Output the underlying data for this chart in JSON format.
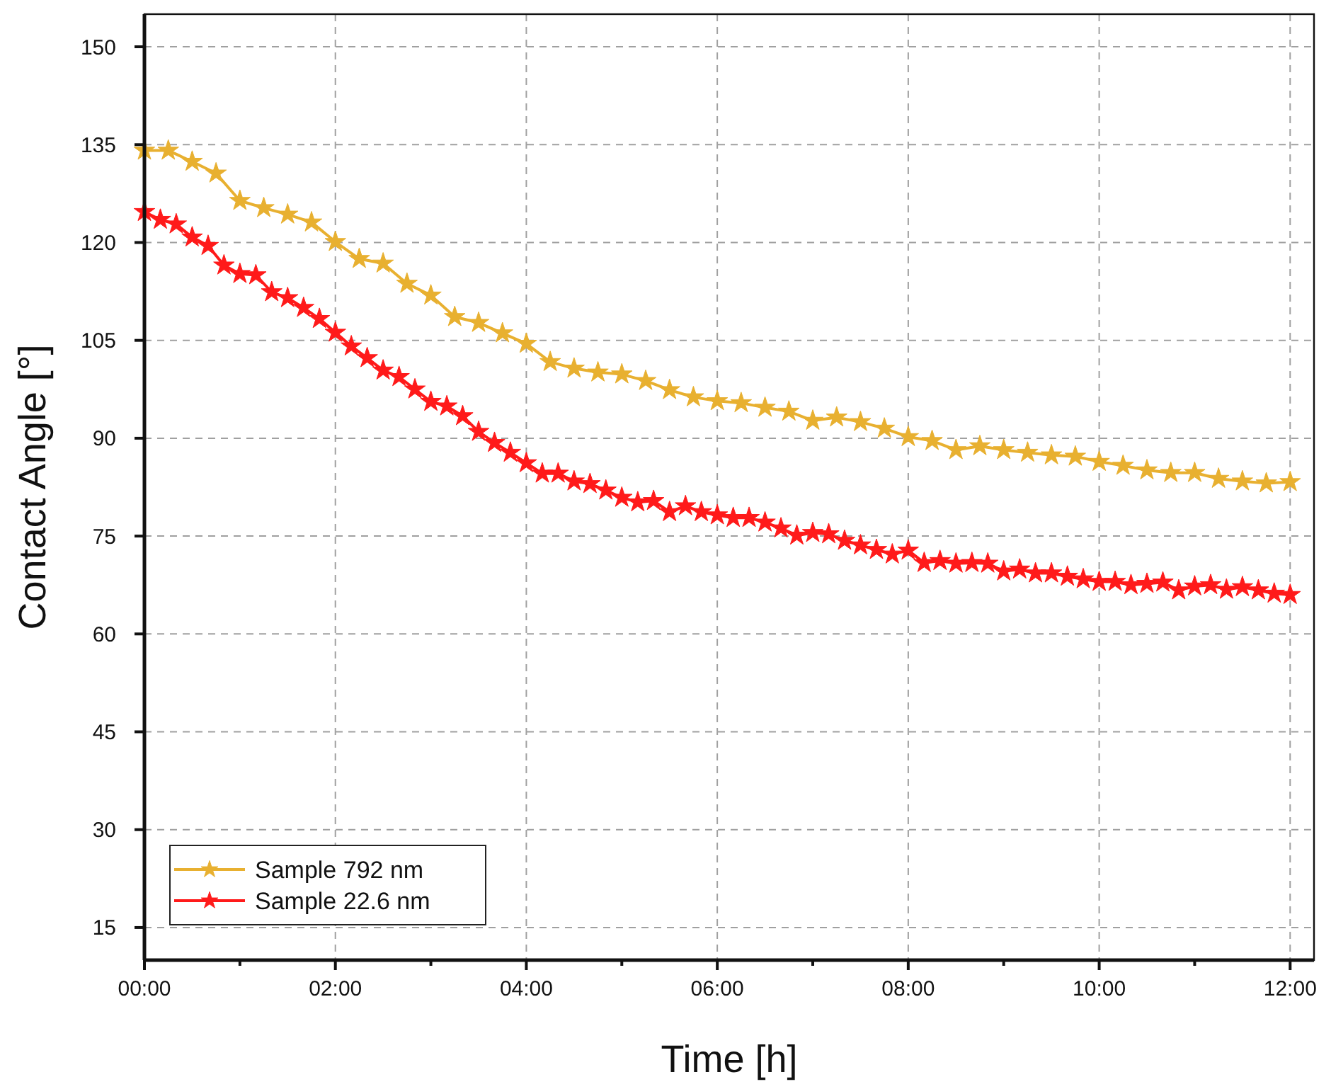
{
  "chart_data": {
    "type": "line",
    "xlabel": "Time [h]",
    "ylabel": "Contact Angle [°]",
    "xlim": [
      0,
      12.25
    ],
    "ylim": [
      10,
      155
    ],
    "xticks": [
      {
        "value": 0,
        "label": "00:00"
      },
      {
        "value": 1,
        "label": null
      },
      {
        "value": 2,
        "label": "02:00"
      },
      {
        "value": 3,
        "label": null
      },
      {
        "value": 4,
        "label": "04:00"
      },
      {
        "value": 5,
        "label": null
      },
      {
        "value": 6,
        "label": "06:00"
      },
      {
        "value": 7,
        "label": null
      },
      {
        "value": 8,
        "label": "08:00"
      },
      {
        "value": 9,
        "label": null
      },
      {
        "value": 10,
        "label": "10:00"
      },
      {
        "value": 11,
        "label": null
      },
      {
        "value": 12,
        "label": "12:00"
      }
    ],
    "yticks": [
      15,
      30,
      45,
      60,
      75,
      90,
      105,
      120,
      135,
      150
    ],
    "grid": true,
    "legend": "bottom left",
    "marker": "star",
    "line_style": "solid",
    "series": [
      {
        "name": "Sample 792 nm",
        "color": "#e8b030",
        "x": [
          0,
          0.25,
          0.5,
          0.75,
          1,
          1.25,
          1.5,
          1.75,
          2,
          2.25,
          2.5,
          2.75,
          3,
          3.25,
          3.5,
          3.75,
          4,
          4.25,
          4.5,
          4.75,
          5,
          5.25,
          5.5,
          5.75,
          6,
          6.25,
          6.5,
          6.75,
          7,
          7.25,
          7.5,
          7.75,
          8,
          8.25,
          8.5,
          8.75,
          9,
          9.25,
          9.5,
          9.75,
          10,
          10.25,
          10.5,
          10.75,
          11,
          11.25,
          11.5,
          11.75,
          12
        ],
        "values": [
          134.1,
          134.1,
          132.4,
          130.6,
          126.4,
          125.3,
          124.3,
          123.1,
          120.1,
          117.5,
          116.8,
          113.7,
          111.9,
          108.6,
          107.7,
          106.1,
          104.5,
          101.7,
          100.7,
          100.1,
          99.8,
          98.8,
          97.4,
          96.3,
          95.7,
          95.4,
          94.7,
          94.1,
          92.7,
          93.2,
          92.5,
          91.5,
          90.2,
          89.6,
          88.2,
          88.8,
          88.2,
          87.8,
          87.4,
          87.2,
          86.4,
          85.8,
          85.1,
          84.7,
          84.7,
          83.8,
          83.4,
          83.1,
          83.3
        ]
      },
      {
        "name": "Sample 22.6 nm",
        "color": "#ff1a1a",
        "x": [
          0,
          0.167,
          0.333,
          0.5,
          0.667,
          0.833,
          1,
          1.167,
          1.333,
          1.5,
          1.667,
          1.833,
          2,
          2.167,
          2.333,
          2.5,
          2.667,
          2.833,
          3,
          3.167,
          3.333,
          3.5,
          3.667,
          3.833,
          4,
          4.167,
          4.333,
          4.5,
          4.667,
          4.833,
          5,
          5.167,
          5.333,
          5.5,
          5.667,
          5.833,
          6,
          6.167,
          6.333,
          6.5,
          6.667,
          6.833,
          7,
          7.167,
          7.333,
          7.5,
          7.667,
          7.833,
          8,
          8.167,
          8.333,
          8.5,
          8.667,
          8.833,
          9,
          9.167,
          9.333,
          9.5,
          9.667,
          9.833,
          10,
          10.167,
          10.333,
          10.5,
          10.667,
          10.833,
          11,
          11.167,
          11.333,
          11.5,
          11.667,
          11.833,
          12
        ],
        "values": [
          124.7,
          123.5,
          122.8,
          120.8,
          119.5,
          116.5,
          115.2,
          115.0,
          112.4,
          111.5,
          110.0,
          108.3,
          106.2,
          104.1,
          102.3,
          100.4,
          99.4,
          97.5,
          95.6,
          94.9,
          93.4,
          91.0,
          89.3,
          87.8,
          86.2,
          84.6,
          84.6,
          83.4,
          83.0,
          82.0,
          80.9,
          80.2,
          80.4,
          78.7,
          79.6,
          78.7,
          78.2,
          77.8,
          77.8,
          77.1,
          76.2,
          75.1,
          75.5,
          75.3,
          74.3,
          73.6,
          72.9,
          72.2,
          72.8,
          70.9,
          71.2,
          70.8,
          70.9,
          70.8,
          69.6,
          69.9,
          69.3,
          69.3,
          68.8,
          68.4,
          68.0,
          68.0,
          67.5,
          67.7,
          67.9,
          66.7,
          67.3,
          67.5,
          66.8,
          67.2,
          66.7,
          66.2,
          66.0
        ]
      }
    ]
  }
}
